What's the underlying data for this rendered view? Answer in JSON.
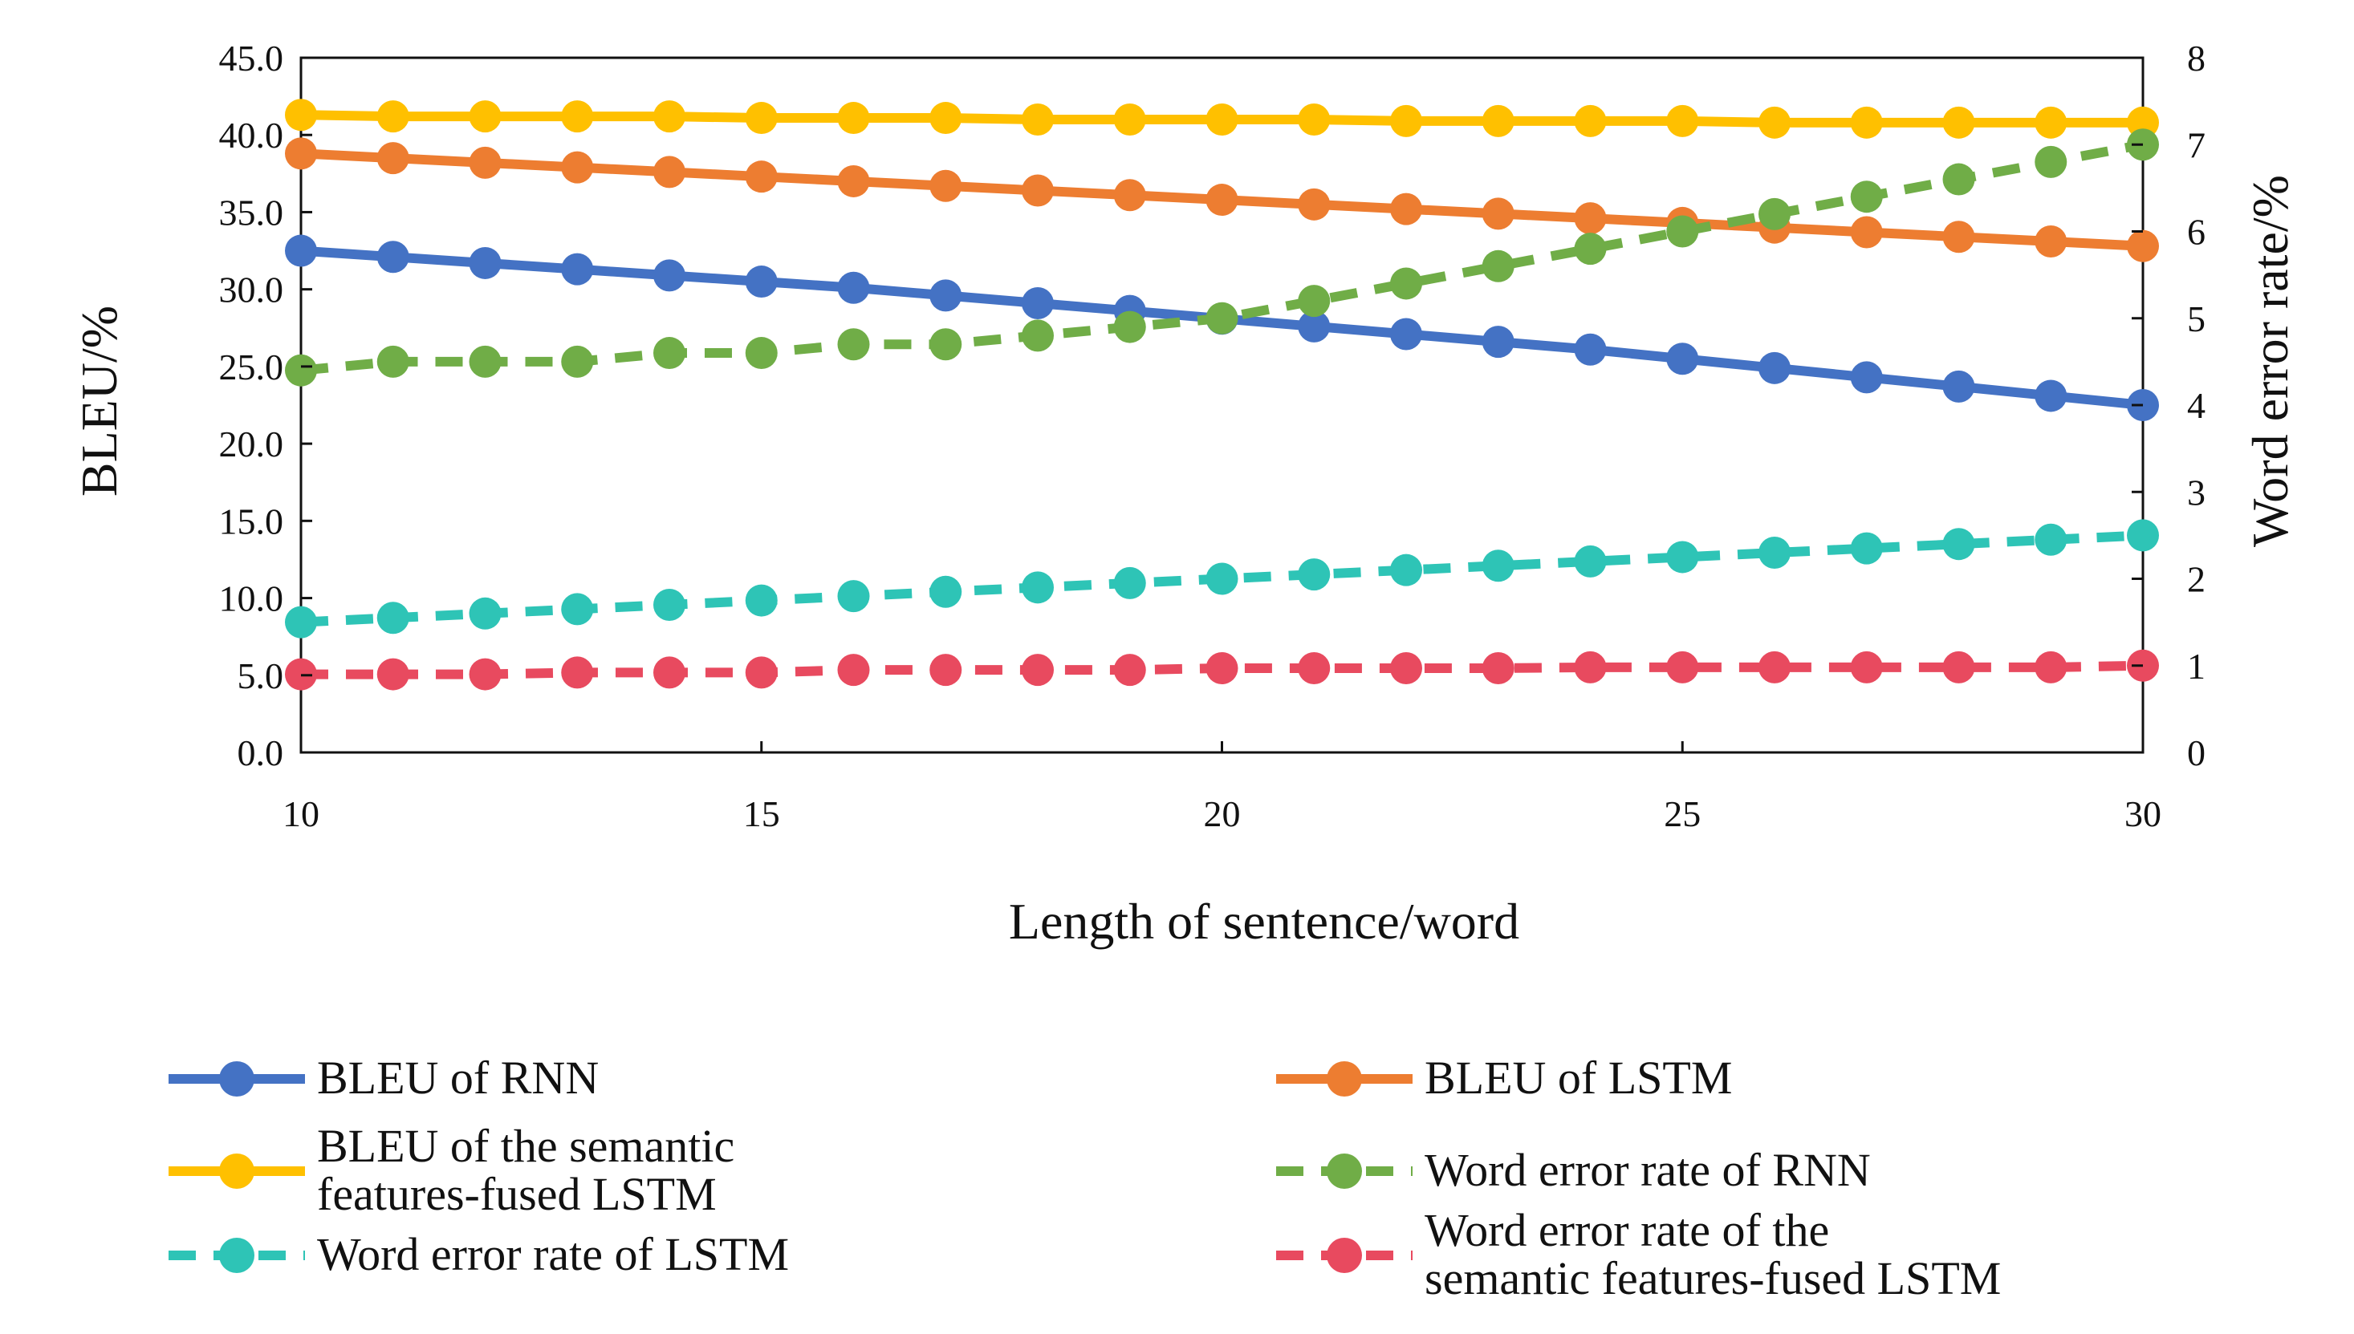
{
  "chart_data": {
    "type": "line",
    "xlabel": "Length of sentence/word",
    "ylabel_left": "BLEU/%",
    "ylabel_right": "Word error rate/%",
    "xlim": [
      10,
      30
    ],
    "ylim_left": [
      0,
      45
    ],
    "ylim_right": [
      0,
      8
    ],
    "x_ticks": [
      "10",
      "15",
      "20",
      "25",
      "30"
    ],
    "y_left_ticks": [
      "0.0",
      "5.0",
      "10.0",
      "15.0",
      "20.0",
      "25.0",
      "30.0",
      "35.0",
      "40.0",
      "45.0"
    ],
    "y_right_ticks": [
      "0",
      "1",
      "2",
      "3",
      "4",
      "5",
      "6",
      "7",
      "8"
    ],
    "x": [
      10,
      11,
      12,
      13,
      14,
      15,
      16,
      17,
      18,
      19,
      20,
      21,
      22,
      23,
      24,
      25,
      26,
      27,
      28,
      29,
      30
    ],
    "series": [
      {
        "name": "BLEU of RNN",
        "axis": "left",
        "color": "#4472C4",
        "dashed": false,
        "values": [
          32.5,
          32.1,
          31.7,
          31.3,
          30.9,
          30.5,
          30.1,
          29.6,
          29.1,
          28.6,
          28.1,
          27.6,
          27.1,
          26.6,
          26.1,
          25.5,
          24.9,
          24.3,
          23.7,
          23.1,
          22.5
        ]
      },
      {
        "name": "BLEU of LSTM",
        "axis": "left",
        "color": "#ED7D31",
        "dashed": false,
        "values": [
          38.8,
          38.5,
          38.2,
          37.9,
          37.6,
          37.3,
          37.0,
          36.7,
          36.4,
          36.1,
          35.8,
          35.5,
          35.2,
          34.9,
          34.6,
          34.3,
          34.0,
          33.7,
          33.4,
          33.1,
          32.8
        ]
      },
      {
        "name": "BLEU of the semantic features-fused LSTM",
        "axis": "left",
        "color": "#FFC000",
        "dashed": false,
        "values": [
          41.3,
          41.2,
          41.2,
          41.2,
          41.2,
          41.1,
          41.1,
          41.1,
          41.0,
          41.0,
          41.0,
          41.0,
          40.9,
          40.9,
          40.9,
          40.9,
          40.8,
          40.8,
          40.8,
          40.8,
          40.8
        ]
      },
      {
        "name": "Word error rate of RNN",
        "axis": "right",
        "color": "#70AD47",
        "dashed": true,
        "values": [
          4.4,
          4.5,
          4.5,
          4.5,
          4.6,
          4.6,
          4.7,
          4.7,
          4.8,
          4.9,
          5.0,
          5.2,
          5.4,
          5.6,
          5.8,
          6.0,
          6.2,
          6.4,
          6.6,
          6.8,
          7.0
        ]
      },
      {
        "name": "Word error rate of LSTM",
        "axis": "right",
        "color": "#2EC4B6",
        "dashed": true,
        "values": [
          1.5,
          1.55,
          1.6,
          1.65,
          1.7,
          1.75,
          1.8,
          1.85,
          1.9,
          1.95,
          2.0,
          2.05,
          2.1,
          2.15,
          2.2,
          2.25,
          2.3,
          2.35,
          2.4,
          2.45,
          2.5
        ]
      },
      {
        "name": "Word error rate of the semantic features-fused LSTM",
        "axis": "right",
        "color": "#E84A5F",
        "dashed": true,
        "values": [
          0.9,
          0.9,
          0.9,
          0.92,
          0.92,
          0.92,
          0.95,
          0.95,
          0.95,
          0.95,
          0.97,
          0.97,
          0.97,
          0.97,
          0.98,
          0.98,
          0.98,
          0.98,
          0.98,
          0.98,
          1.0
        ]
      }
    ],
    "legend": {
      "placement": "bottom",
      "entries": [
        {
          "lines": [
            "BLEU of RNN"
          ]
        },
        {
          "lines": [
            "BLEU of LSTM"
          ]
        },
        {
          "lines": [
            "BLEU of the semantic",
            "features-fused LSTM"
          ]
        },
        {
          "lines": [
            "Word error rate of RNN"
          ]
        },
        {
          "lines": [
            "Word error rate of LSTM"
          ]
        },
        {
          "lines": [
            "Word error rate of the",
            "semantic features-fused LSTM"
          ]
        }
      ]
    },
    "grid": false
  }
}
